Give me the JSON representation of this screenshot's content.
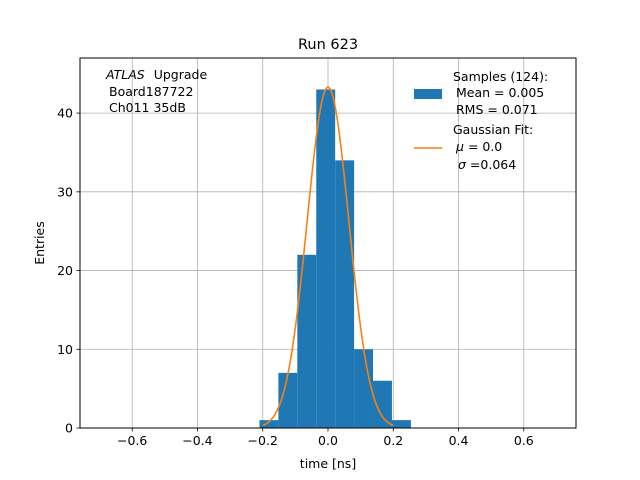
{
  "chart_data": {
    "type": "bar",
    "title": "Run 623",
    "xlabel": "time [ns]",
    "ylabel": "Entries",
    "xlim": [
      -0.76,
      0.76
    ],
    "ylim": [
      0,
      47
    ],
    "grid": true,
    "xticks": [
      -0.6,
      -0.4,
      -0.2,
      0.0,
      0.2,
      0.4,
      0.6
    ],
    "xtick_labels": [
      "−0.6",
      "−0.4",
      "−0.2",
      "0.0",
      "0.2",
      "0.4",
      "0.6"
    ],
    "yticks": [
      0,
      10,
      20,
      30,
      40
    ],
    "ytick_labels": [
      "0",
      "10",
      "20",
      "30",
      "40"
    ],
    "histogram": {
      "name": "Samples",
      "color": "#1f77b4",
      "bin_edges": [
        -0.21,
        -0.152,
        -0.094,
        -0.036,
        0.022,
        0.08,
        0.138,
        0.196,
        0.254
      ],
      "counts": [
        1,
        7,
        22,
        43,
        34,
        10,
        6,
        1
      ]
    },
    "fit": {
      "name": "Gaussian Fit",
      "color": "#ff7f0e",
      "mu": 0.0,
      "sigma": 0.064,
      "amplitude": 43.3,
      "x_range": [
        -0.2,
        0.2
      ]
    },
    "annotation": {
      "experiment": "ATLAS",
      "experiment_suffix": "Upgrade",
      "board": "Board187722",
      "channel": "Ch011 35dB"
    },
    "legend": {
      "placement": "top-right",
      "samples_title": "Samples (124):",
      "samples_mean": "Mean = 0.005",
      "samples_rms": "RMS = 0.071",
      "fit_title": "Gaussian Fit:",
      "fit_mu_symbol": "μ",
      "fit_mu_value": " = 0.0",
      "fit_sigma_symbol": "σ",
      "fit_sigma_value": "=0.064"
    }
  }
}
